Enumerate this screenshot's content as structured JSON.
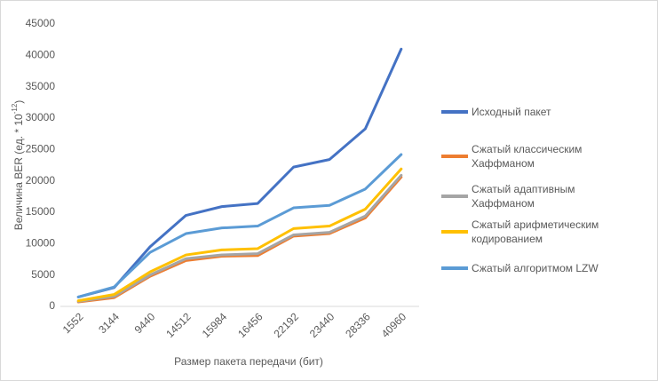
{
  "chart_data": {
    "type": "line",
    "xlabel": "Размер пакета передачи (бит)",
    "ylabel": "Величина BER (ед. * 10",
    "ylabel_sup": "-12",
    "ylabel_end": ")",
    "categories": [
      "1552",
      "3144",
      "9440",
      "14512",
      "15984",
      "16456",
      "22192",
      "23440",
      "28336",
      "40960"
    ],
    "series": [
      {
        "name": "Исходный пакет",
        "color": "#4472c4",
        "values": [
          1500,
          3000,
          9500,
          14500,
          15900,
          16400,
          22200,
          23400,
          28300,
          41000
        ]
      },
      {
        "name": "Сжатый классическим Хаффманом",
        "color": "#ed7d31",
        "values": [
          700,
          1400,
          4800,
          7300,
          8000,
          8100,
          11200,
          11600,
          14100,
          20600
        ]
      },
      {
        "name": "Сжатый адаптивным Хаффманом",
        "color": "#a5a5a5",
        "values": [
          800,
          1600,
          5000,
          7600,
          8200,
          8400,
          11400,
          11800,
          14400,
          20900
        ]
      },
      {
        "name": "Сжатый арифметическим кодированием",
        "color": "#ffc000",
        "values": [
          900,
          1900,
          5500,
          8200,
          9000,
          9200,
          12400,
          12800,
          15500,
          21900
        ]
      },
      {
        "name": "Сжатый алгоритмом LZW",
        "color": "#5b9bd5",
        "values": [
          1500,
          3100,
          8600,
          11600,
          12500,
          12800,
          15700,
          16100,
          18700,
          24200
        ]
      }
    ],
    "ylim": [
      0,
      45000
    ],
    "yticks": [
      0,
      5000,
      10000,
      15000,
      20000,
      25000,
      30000,
      35000,
      40000,
      45000
    ],
    "grid": false,
    "legend": "right"
  }
}
